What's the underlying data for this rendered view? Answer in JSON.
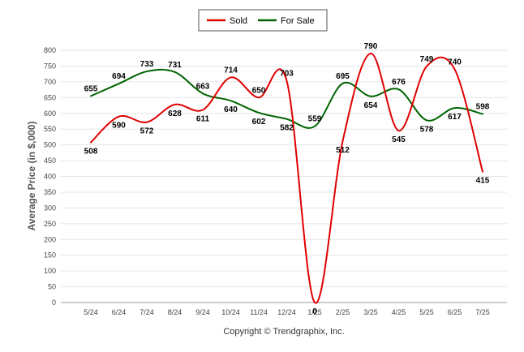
{
  "chart_data": {
    "type": "line",
    "title": "",
    "xlabel": "",
    "ylabel": "Average Price (in $,000)",
    "ylim": [
      0,
      800
    ],
    "yticks": [
      0,
      50,
      100,
      150,
      200,
      250,
      300,
      350,
      400,
      450,
      500,
      550,
      600,
      650,
      700,
      750,
      800
    ],
    "grid": true,
    "legend_position": "top-center",
    "categories": [
      "5/24",
      "6/24",
      "7/24",
      "8/24",
      "9/24",
      "10/24",
      "11/24",
      "12/24",
      "1/25",
      "2/25",
      "3/25",
      "4/25",
      "5/25",
      "6/25",
      "7/25"
    ],
    "series": [
      {
        "name": "Sold",
        "color": "#e00000",
        "values": [
          508,
          590,
          572,
          628,
          611,
          714,
          650,
          703,
          0,
          512,
          790,
          545,
          749,
          740,
          415
        ]
      },
      {
        "name": "For Sale",
        "color": "#006400",
        "values": [
          655,
          694,
          733,
          731,
          663,
          640,
          602,
          582,
          559,
          695,
          654,
          676,
          578,
          617,
          598
        ]
      }
    ]
  },
  "footer": {
    "credit": "Copyright © Trendgraphix, Inc."
  }
}
